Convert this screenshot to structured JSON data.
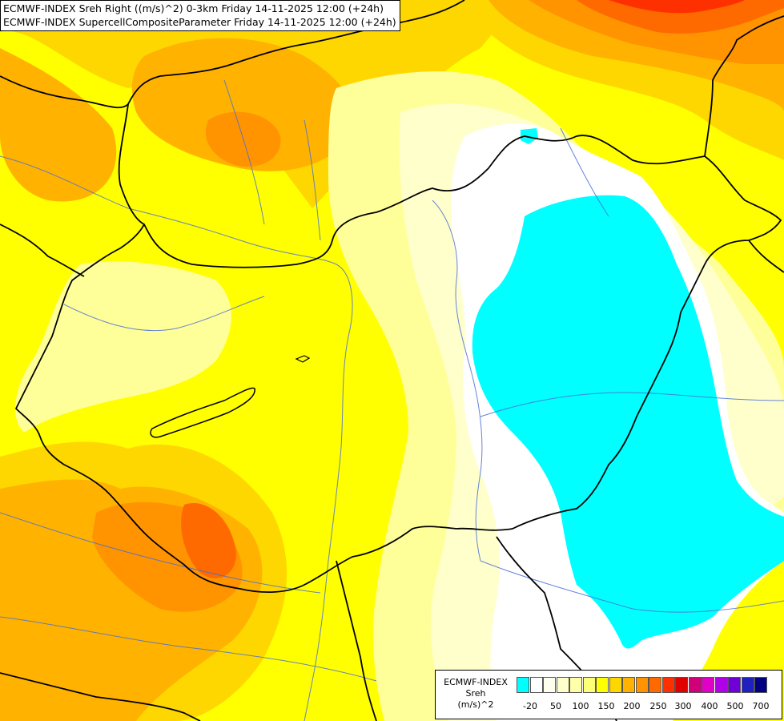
{
  "title_lines": [
    "ECMWF-INDEX Sreh Right ((m/s)^2) 0-3km Friday 14-11-2025 12:00 (+24h)",
    "ECMWF-INDEX SupercellCompositeParameter Friday 14-11-2025 12:00 (+24h)"
  ],
  "legend": {
    "lines": [
      "ECMWF-INDEX",
      "Sreh",
      "(m/s)^2"
    ],
    "colors": [
      "#00ffff",
      "#ffffff",
      "#ffffee",
      "#ffffcc",
      "#ffffaa",
      "#ffff77",
      "#ffff00",
      "#ffd700",
      "#ffb300",
      "#ff9400",
      "#ff6a00",
      "#ff3000",
      "#e00000",
      "#d0007a",
      "#e000c8",
      "#b000e8",
      "#7000d8",
      "#2020c0",
      "#000080"
    ],
    "ticks": [
      "-20",
      "50",
      "100",
      "150",
      "200",
      "250",
      "300",
      "400",
      "500",
      "700"
    ]
  },
  "map": {
    "region": "Hungary and surroundings",
    "field_colors": {
      "cyan": "#00ffff",
      "white": "#ffffff",
      "pale": "#ffffcc",
      "light_yellow": "#ffff99",
      "yellow": "#ffff00",
      "gold": "#ffd700",
      "orange_light": "#ffb300",
      "orange": "#ff9400",
      "orange_dark": "#ff6a00",
      "red": "#ff3000"
    },
    "border_color": "#000000",
    "river_color": "#4a6fd6"
  }
}
